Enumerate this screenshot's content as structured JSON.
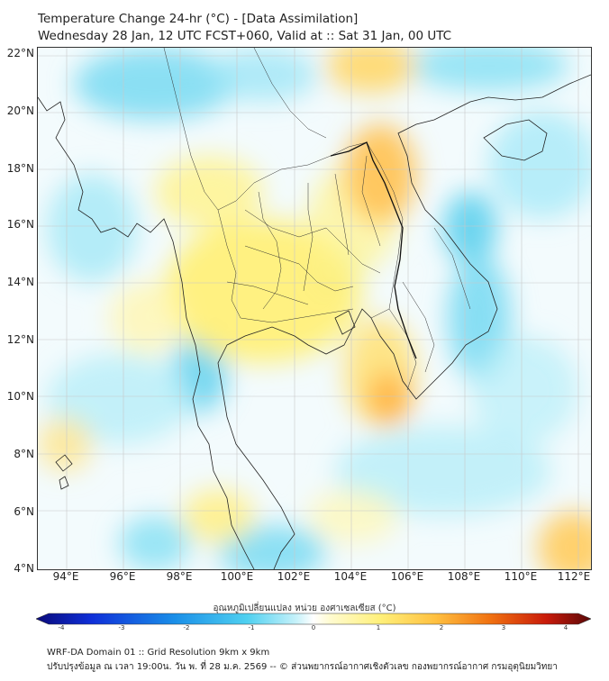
{
  "header": {
    "title_line1": "Temperature Change 24-hr (°C) - [Data Assimilation]",
    "title_line2": "Wednesday 28 Jan, 12 UTC FCST+060, Valid at :: Sat 31 Jan, 00 UTC"
  },
  "map": {
    "lat_labels": [
      "22°N",
      "20°N",
      "18°N",
      "16°N",
      "14°N",
      "12°N",
      "10°N",
      "8°N",
      "6°N",
      "4°N"
    ],
    "lon_labels": [
      "94°E",
      "96°E",
      "98°E",
      "100°E",
      "102°E",
      "104°E",
      "106°E",
      "108°E",
      "110°E",
      "112°E"
    ],
    "lat_range": [
      4,
      22.3
    ],
    "lon_range": [
      93.1,
      112.5
    ]
  },
  "colorbar": {
    "label": "อุณหภูมิเปลี่ยนแปลง หน่วย องศาเซลเซียส (°C)",
    "ticks": [
      "-4",
      "-3",
      "-2",
      "-1",
      "0",
      "1",
      "2",
      "3",
      "4"
    ],
    "range": [
      -4,
      4
    ]
  },
  "footer": {
    "line1": "WRF-DA Domain 01 :: Grid Resolution 9km x 9km",
    "line2": "ปรับปรุงข้อมูล ณ เวลา 19:00น. วัน พ. ที่ 28 ม.ค. 2569 -- © ส่วนพยากรณ์อากาศเชิงตัวเลข กองพยากรณ์อากาศ กรมอุตุนิยมวิทยา"
  }
}
